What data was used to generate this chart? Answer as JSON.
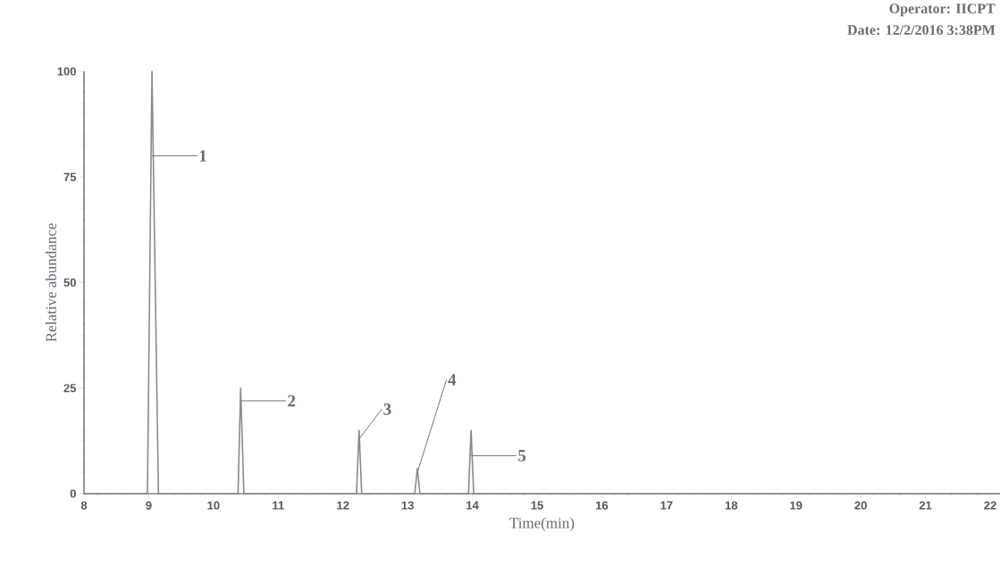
{
  "chart_data": {
    "type": "line",
    "xlabel": "Time(min)",
    "ylabel": "Relative abundance",
    "x": [
      8,
      8.98,
      9.05,
      9.15,
      10.38,
      10.42,
      10.47,
      12.21,
      12.25,
      12.29,
      13.11,
      13.15,
      13.19,
      13.94,
      13.98,
      14.02,
      22.15
    ],
    "series": [
      {
        "color": "#8a8a8a",
        "values": [
          0,
          0,
          100,
          0,
          0,
          25,
          0,
          0,
          15,
          0,
          0,
          6,
          0,
          0,
          15,
          0,
          0
        ]
      }
    ],
    "xlim": [
      8,
      22.15
    ],
    "ylim": [
      0,
      100
    ],
    "xticks": [
      8,
      9,
      10,
      11,
      12,
      13,
      14,
      15,
      16,
      17,
      18,
      19,
      20,
      21,
      22
    ],
    "yticks": [
      0,
      25,
      50,
      75,
      100
    ],
    "grid": false,
    "marker": "none",
    "line_style": "solid",
    "annotations": [
      {
        "text": "1",
        "x": 9.05,
        "y": 80
      },
      {
        "text": "2",
        "x": 10.42,
        "y": 22
      },
      {
        "text": "3",
        "x": 12.25,
        "y": 13
      },
      {
        "text": "4",
        "x": 13.15,
        "y": 5
      },
      {
        "text": "5",
        "x": 13.98,
        "y": 9
      },
      "Operator: IICPT",
      "Date: 12/2/2016 3:38PM"
    ]
  }
}
